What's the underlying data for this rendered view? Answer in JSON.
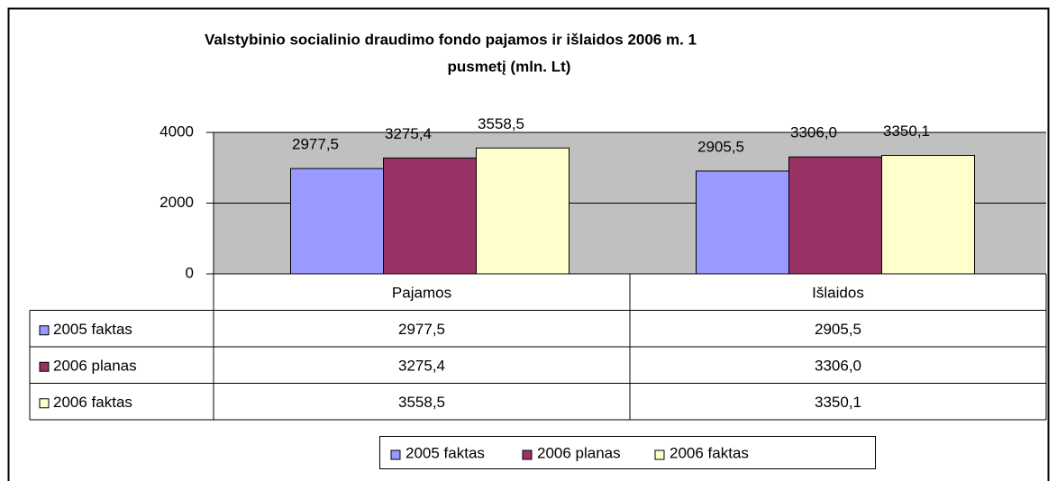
{
  "chart_data": {
    "type": "bar",
    "title": [
      "Valstybinio socialinio draudimo fondo pajamos ir išlaidos 2006 m. 1",
      "pusmetį (mln. Lt)"
    ],
    "categories": [
      "Pajamos",
      "Išlaidos"
    ],
    "series": [
      {
        "name": "2005 faktas",
        "color": "#9999ff",
        "values": [
          2977.5,
          2905.5
        ],
        "value_labels": [
          "2977,5",
          "2905,5"
        ]
      },
      {
        "name": "2006 planas",
        "color": "#993366",
        "values": [
          3275.4,
          3306.0
        ],
        "value_labels": [
          "3275,4",
          "3306,0"
        ]
      },
      {
        "name": "2006 faktas",
        "color": "#ffffcc",
        "values": [
          3558.5,
          3350.1
        ],
        "value_labels": [
          "3558,5",
          "3350,1"
        ]
      }
    ],
    "ylim": [
      0,
      4000
    ],
    "yticks": [
      0,
      2000,
      4000
    ],
    "grid": true,
    "plot_background": "#c0c0c0"
  }
}
